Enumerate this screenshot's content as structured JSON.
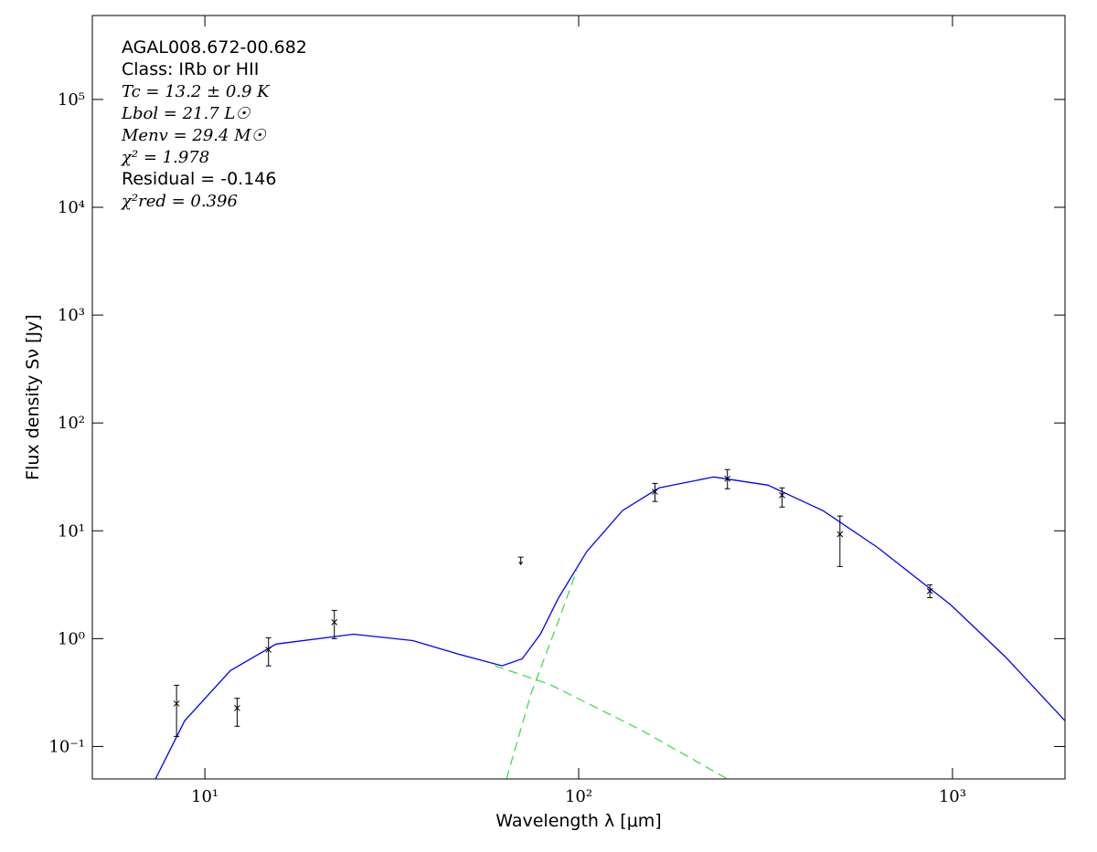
{
  "chart_data": {
    "type": "scatter",
    "xlabel": "Wavelength λ [μm]",
    "ylabel": "Flux density Sν [Jy]",
    "annotations": [
      "AGAL008.672-00.682",
      "Class: IRb or HII",
      "Tc = 13.2 ± 0.9 K",
      "Lbol = 21.7 L☉",
      "Menv = 29.4 M☉",
      "χ² = 1.978",
      "Residual = -0.146",
      "χ²red = 0.396"
    ],
    "xscale": "log",
    "yscale": "log",
    "xlim": [
      5,
      2000
    ],
    "ylim": [
      0.05,
      600000
    ],
    "xticks": [
      {
        "value": 10,
        "label": "10¹"
      },
      {
        "value": 100,
        "label": "10²"
      },
      {
        "value": 1000,
        "label": "10³"
      }
    ],
    "yticks": [
      {
        "value": 0.1,
        "label": "10⁻¹"
      },
      {
        "value": 1,
        "label": "10⁰"
      },
      {
        "value": 10,
        "label": "10¹"
      },
      {
        "value": 100,
        "label": "10²"
      },
      {
        "value": 1000,
        "label": "10³"
      },
      {
        "value": 10000,
        "label": "10⁴"
      },
      {
        "value": 100000,
        "label": "10⁵"
      }
    ],
    "points": {
      "color": "#000000",
      "x": [
        8.4,
        12.2,
        14.8,
        22.2,
        160,
        250,
        350,
        500,
        870
      ],
      "values": [
        0.25,
        0.227,
        0.79,
        1.42,
        23,
        30.4,
        21.4,
        9.3,
        2.76
      ],
      "lower": [
        0.124,
        0.154,
        0.56,
        1.0,
        18.7,
        24.5,
        16.6,
        4.67,
        2.4
      ],
      "upper": [
        0.37,
        0.28,
        1.02,
        1.83,
        27.5,
        36.9,
        25,
        13.7,
        3.16
      ]
    },
    "limits": {
      "color": "#000000",
      "x": [
        70
      ],
      "values": [
        5.7
      ]
    },
    "curves": [
      {
        "color": "#0000ff",
        "dashed": false,
        "x": [
          7.38,
          8.83,
          11.7,
          15.5,
          25,
          36,
          47.6,
          62.4,
          70.6,
          79,
          88.4,
          105,
          131,
          164,
          230,
          321,
          450,
          631,
          989,
          1384,
          2000
        ],
        "values": [
          0.05,
          0.173,
          0.505,
          0.89,
          1.1,
          0.96,
          0.72,
          0.56,
          0.65,
          1.1,
          2.4,
          6.4,
          15.4,
          25,
          31.6,
          26.5,
          15.4,
          7.0,
          2.06,
          0.68,
          0.173
        ]
      },
      {
        "color": "#44dd44",
        "dashed": true,
        "x": [
          59.7,
          83.6,
          147,
          250
        ],
        "values": [
          0.56,
          0.377,
          0.142,
          0.05
        ]
      },
      {
        "color": "#44dd44",
        "dashed": true,
        "x": [
          64.1,
          74.6,
          88.4,
          98.9
        ],
        "values": [
          0.05,
          0.31,
          1.48,
          4.3
        ]
      }
    ]
  }
}
